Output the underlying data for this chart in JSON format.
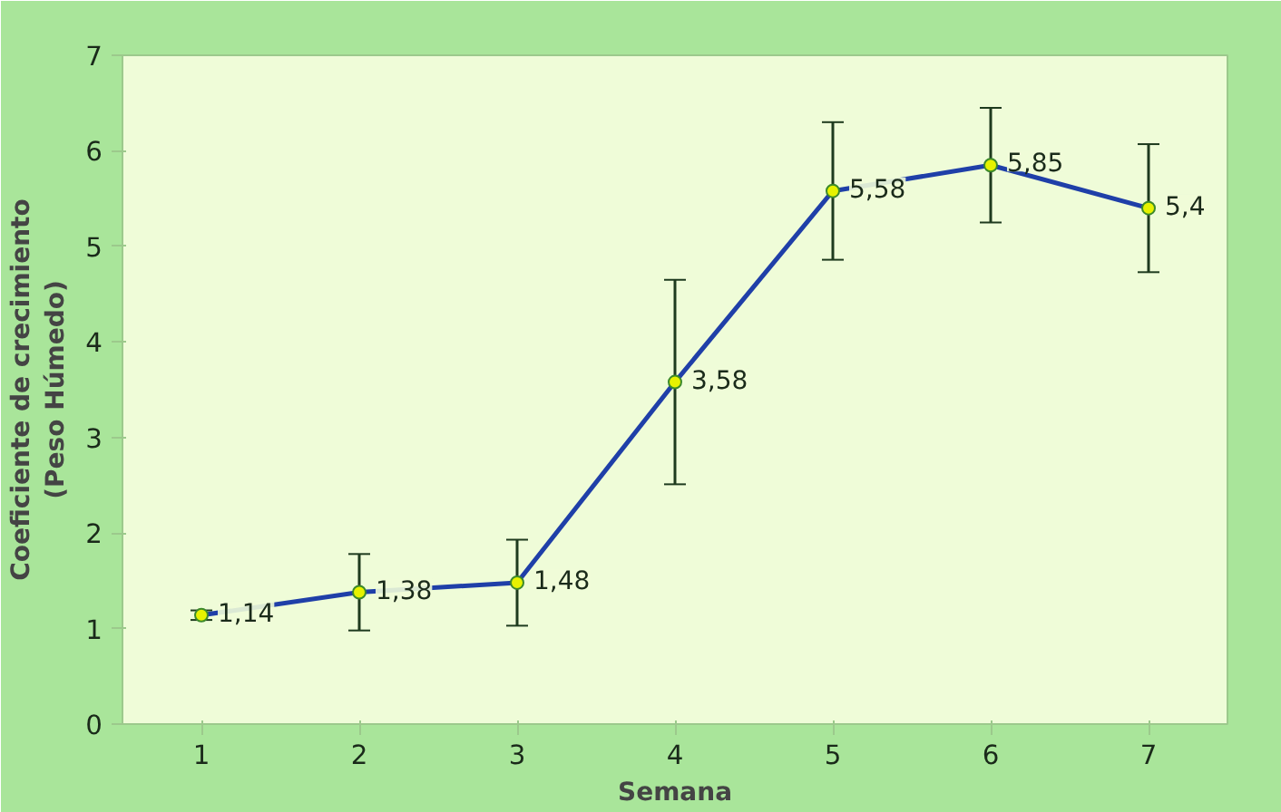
{
  "chart_data": {
    "type": "line",
    "xlabel": "Semana",
    "ylabel": "Coeficiente de crecimiento\n(Peso Húmedo)",
    "categories": [
      "1",
      "2",
      "3",
      "4",
      "5",
      "6",
      "7"
    ],
    "series": [
      {
        "color": "#1f3fa8",
        "values": [
          1.14,
          1.38,
          1.48,
          3.58,
          5.58,
          5.85,
          5.4
        ],
        "errors": [
          0.05,
          0.4,
          0.45,
          1.07,
          0.72,
          0.6,
          0.67
        ],
        "value_labels": [
          "1,14",
          "1,38",
          "1,48",
          "3,58",
          "5,58",
          "5,85",
          "5,4"
        ]
      }
    ],
    "ylim": [
      0,
      7
    ],
    "yticks": [
      0,
      1,
      2,
      3,
      4,
      5,
      6,
      7
    ],
    "grid": false,
    "marker": "circle",
    "line_style": "solid"
  }
}
